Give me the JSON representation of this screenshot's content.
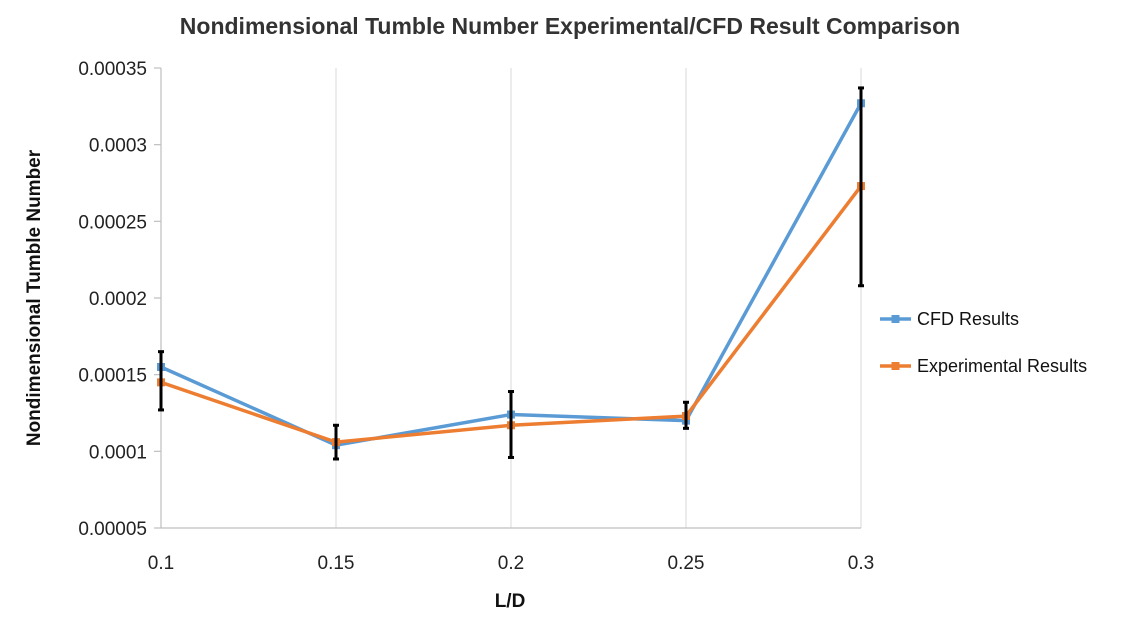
{
  "chart_data": {
    "type": "line",
    "title": "Nondimensional Tumble Number Experimental/CFD Result Comparison",
    "xlabel": "L/D",
    "ylabel": "Nondimensional  Tumble Number",
    "x": [
      0.1,
      0.15,
      0.2,
      0.25,
      0.3
    ],
    "x_tick_labels": [
      "0.1",
      "0.15",
      "0.2",
      "0.25",
      "0.3"
    ],
    "y_tick_labels": [
      "0.00005",
      "0.0001",
      "0.00015",
      "0.0002",
      "0.00025",
      "0.0003",
      "0.00035"
    ],
    "ylim": [
      5e-05,
      0.00035
    ],
    "grid": "vertical",
    "legend_position": "right",
    "series": [
      {
        "name": "CFD Results",
        "color": "#5b9bd5",
        "marker": "square",
        "values": [
          0.000155,
          0.000104,
          0.000124,
          0.00012,
          0.000327
        ]
      },
      {
        "name": "Experimental Results",
        "color": "#ed7d31",
        "marker": "square",
        "values": [
          0.000145,
          0.000106,
          0.000117,
          0.000123,
          0.000273
        ],
        "error_bars": {
          "color": "#000000",
          "low": [
            0.000127,
            9.5e-05,
            9.6e-05,
            0.000115,
            0.000208
          ],
          "high": [
            0.000165,
            0.000117,
            0.000139,
            0.000132,
            0.000337
          ]
        }
      }
    ]
  }
}
